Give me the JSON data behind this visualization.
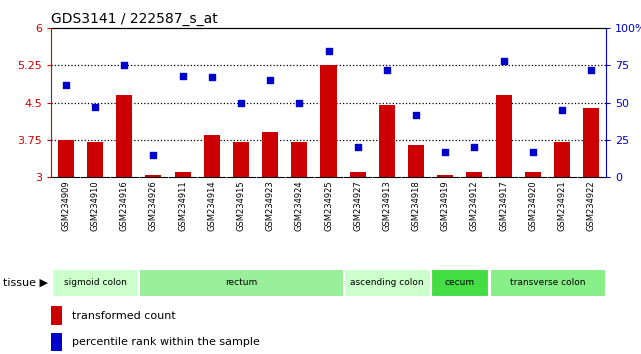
{
  "title": "GDS3141 / 222587_s_at",
  "samples": [
    "GSM234909",
    "GSM234910",
    "GSM234916",
    "GSM234926",
    "GSM234911",
    "GSM234914",
    "GSM234915",
    "GSM234923",
    "GSM234924",
    "GSM234925",
    "GSM234927",
    "GSM234913",
    "GSM234918",
    "GSM234919",
    "GSM234912",
    "GSM234917",
    "GSM234920",
    "GSM234921",
    "GSM234922"
  ],
  "bar_values": [
    3.75,
    3.7,
    4.65,
    3.05,
    3.1,
    3.85,
    3.7,
    3.9,
    3.7,
    5.25,
    3.1,
    4.45,
    3.65,
    3.05,
    3.1,
    4.65,
    3.1,
    3.7,
    4.4
  ],
  "dot_values": [
    62,
    47,
    75,
    15,
    68,
    67,
    50,
    65,
    50,
    85,
    20,
    72,
    42,
    17,
    20,
    78,
    17,
    45,
    72
  ],
  "bar_color": "#cc0000",
  "dot_color": "#0000cc",
  "ylim_left": [
    3.0,
    6.0
  ],
  "ylim_right": [
    0,
    100
  ],
  "yticks_left": [
    3.0,
    3.75,
    4.5,
    5.25,
    6.0
  ],
  "ytick_labels_left": [
    "3",
    "3.75",
    "4.5",
    "5.25",
    "6"
  ],
  "yticks_right": [
    0,
    25,
    50,
    75,
    100
  ],
  "ytick_labels_right": [
    "0",
    "25",
    "50",
    "75",
    "100%"
  ],
  "hlines": [
    3.75,
    4.5,
    5.25
  ],
  "tissue_groups": [
    {
      "label": "sigmoid colon",
      "start": 0,
      "end": 3,
      "color": "#ccffcc"
    },
    {
      "label": "rectum",
      "start": 3,
      "end": 10,
      "color": "#99ee99"
    },
    {
      "label": "ascending colon",
      "start": 10,
      "end": 13,
      "color": "#ccffcc"
    },
    {
      "label": "cecum",
      "start": 13,
      "end": 15,
      "color": "#44dd44"
    },
    {
      "label": "transverse colon",
      "start": 15,
      "end": 19,
      "color": "#88ee88"
    }
  ],
  "tissue_label": "tissue",
  "legend_bar_label": "transformed count",
  "legend_dot_label": "percentile rank within the sample",
  "bg_color": "#ffffff",
  "plot_bg": "#ffffff",
  "axis_color_left": "#cc0000",
  "axis_color_right": "#0000cc",
  "n_samples": 19
}
